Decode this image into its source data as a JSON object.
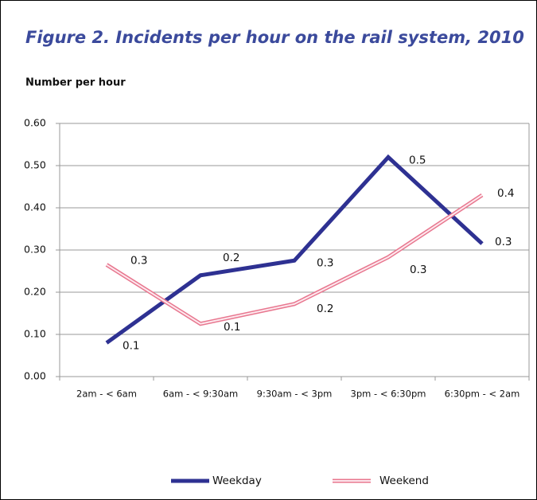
{
  "chart_data": {
    "type": "line",
    "title": "Figure 2. Incidents per hour on the rail system, 2010",
    "y_label": "Number per hour",
    "categories": [
      "2am - < 6am",
      "6am - < 9:30am",
      "9:30am - < 3pm",
      "3pm - < 6:30pm",
      "6:30pm - < 2am"
    ],
    "series": [
      {
        "name": "Weekday",
        "color": "#2e3192",
        "values": [
          0.08,
          0.24,
          0.275,
          0.52,
          0.315
        ],
        "value_labels": [
          "0.1",
          "0.2",
          "0.3",
          "0.5",
          "0.3"
        ]
      },
      {
        "name": "Weekend",
        "color": "#e8778f",
        "values": [
          0.265,
          0.125,
          0.172,
          0.283,
          0.43
        ],
        "value_labels": [
          "0.3",
          "0.1",
          "0.2",
          "0.3",
          "0.4"
        ]
      }
    ],
    "ylim": [
      0,
      0.6
    ],
    "yticks": [
      {
        "value": 0,
        "label": "0.00"
      },
      {
        "value": 0.1,
        "label": "0.10"
      },
      {
        "value": 0.2,
        "label": "0.20"
      },
      {
        "value": 0.3,
        "label": "0.30"
      },
      {
        "value": 0.4,
        "label": "0.40"
      },
      {
        "value": 0.5,
        "label": "0.50"
      },
      {
        "value": 0.6,
        "label": "0.60"
      }
    ],
    "grid": true,
    "legend": "bottom"
  }
}
